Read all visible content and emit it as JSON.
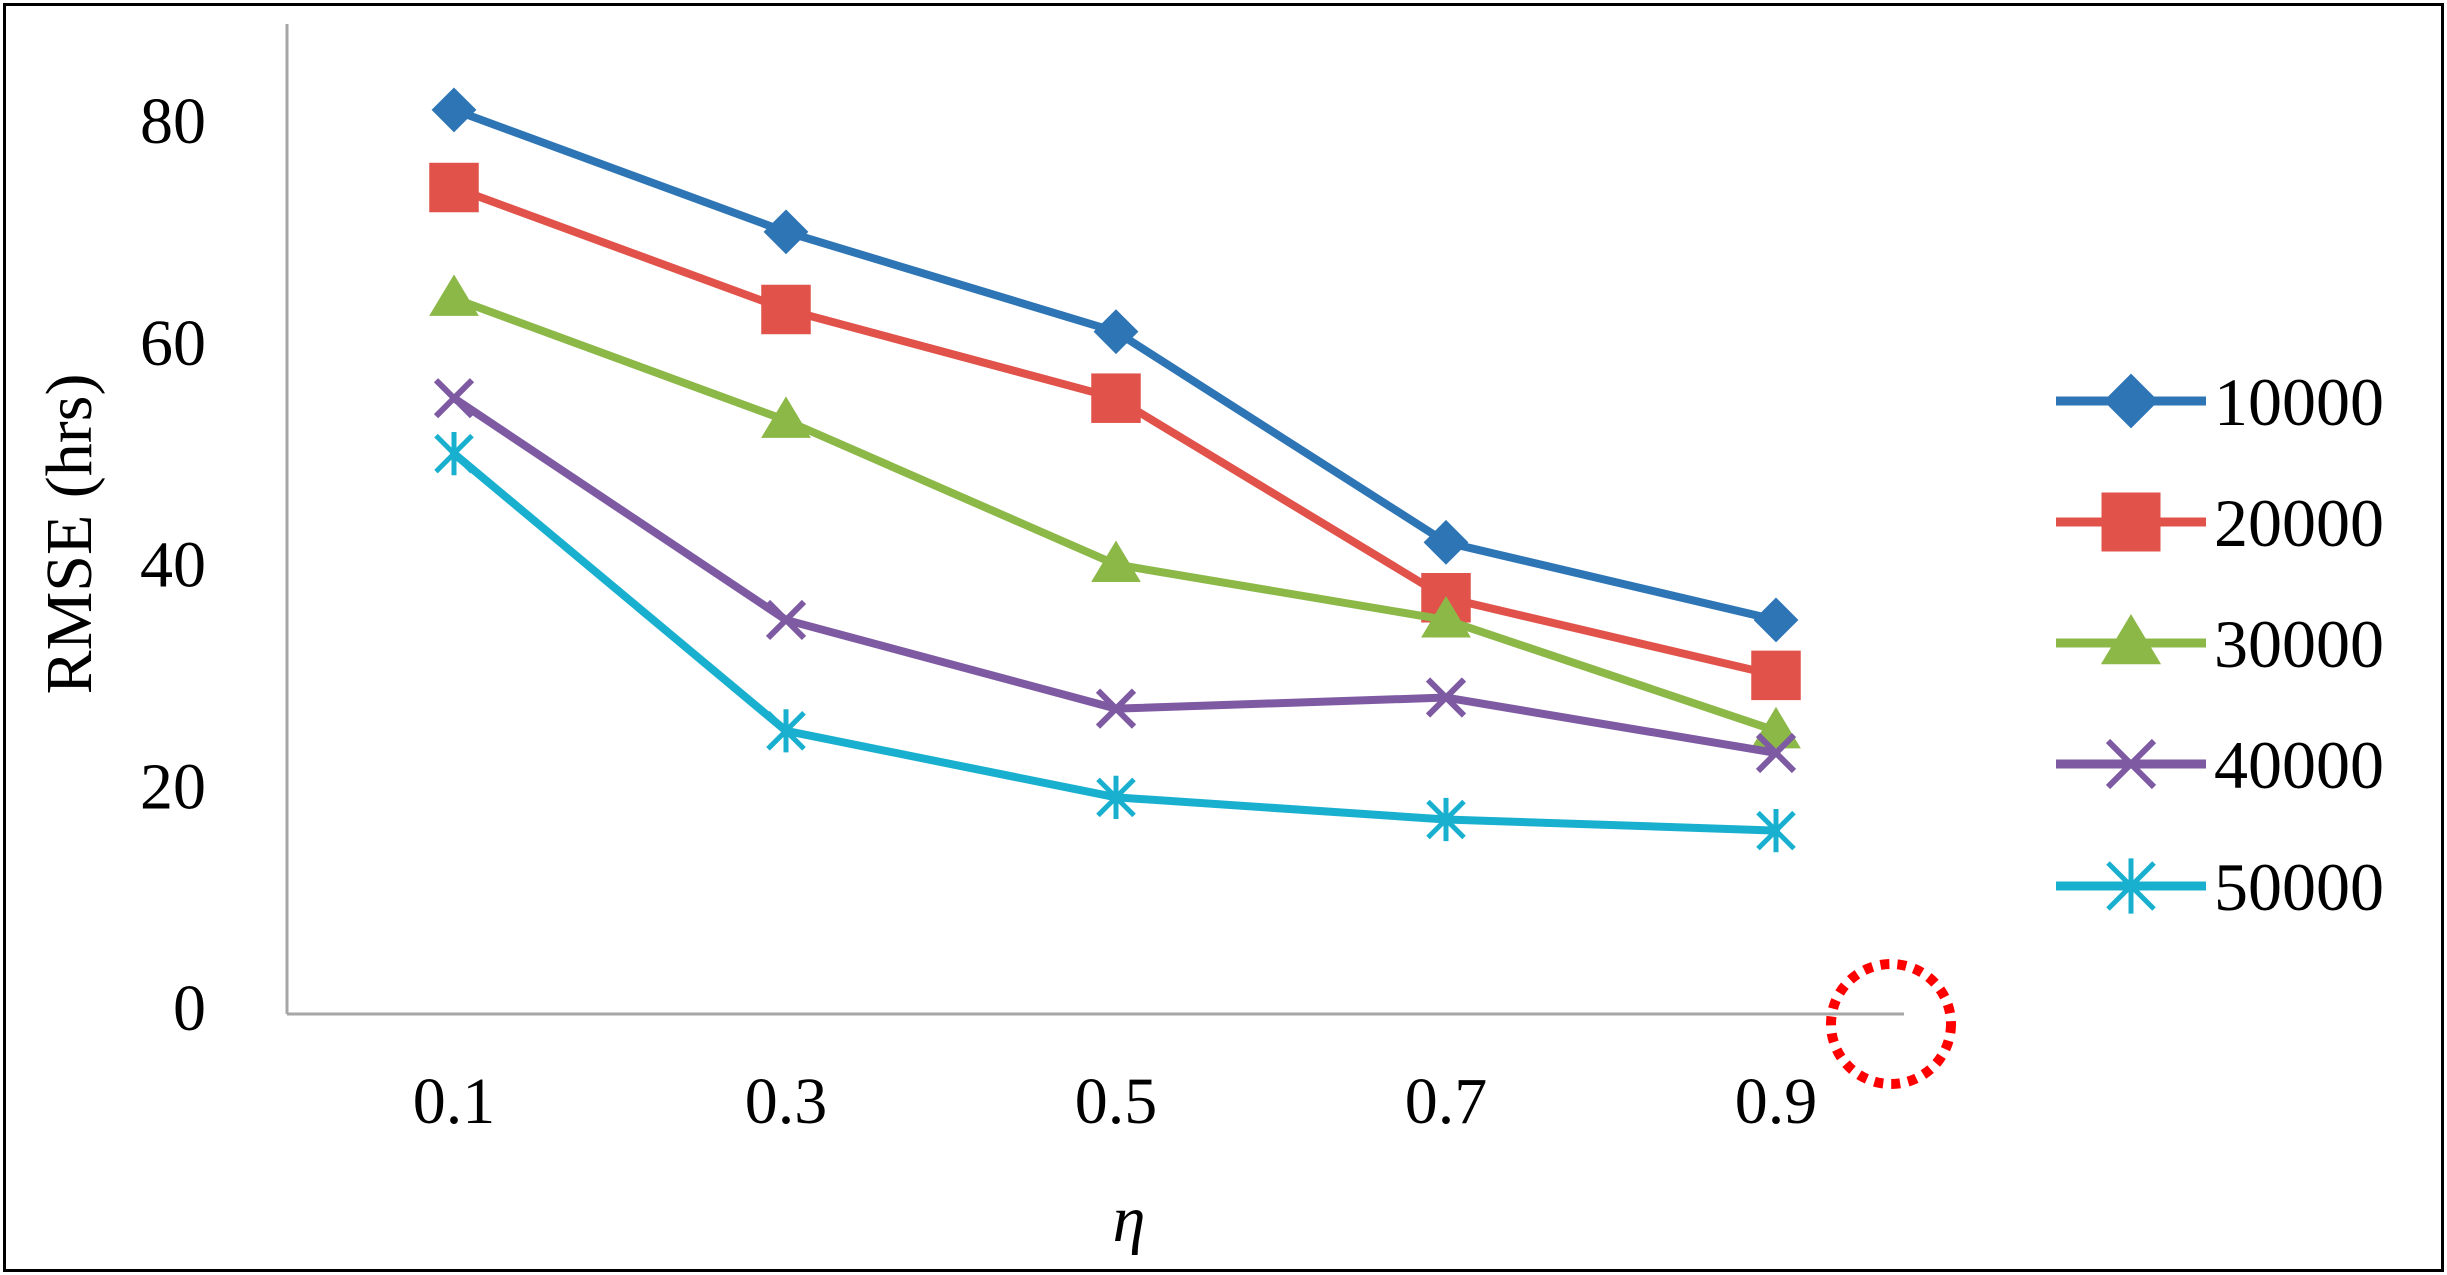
{
  "chart_data": {
    "type": "line",
    "title": "",
    "xlabel": "η",
    "ylabel": "RMSE (hrs)",
    "categories": [
      "0.1",
      "0.3",
      "0.5",
      "0.7",
      "0.9"
    ],
    "y_ticks": [
      "0",
      "20",
      "40",
      "60",
      "80"
    ],
    "ylim": [
      0,
      90
    ],
    "grid": false,
    "legend_position": "right",
    "series": [
      {
        "name": "10000",
        "marker": "diamond",
        "color": "#2E75B6",
        "values": [
          81,
          70,
          61,
          42,
          35
        ]
      },
      {
        "name": "20000",
        "marker": "square",
        "color": "#E0524A",
        "values": [
          74,
          63,
          55,
          37,
          30
        ]
      },
      {
        "name": "30000",
        "marker": "triangle",
        "color": "#8CB848",
        "values": [
          64,
          53,
          40,
          35,
          25
        ]
      },
      {
        "name": "40000",
        "marker": "x",
        "color": "#7E5AA2",
        "values": [
          55,
          35,
          27,
          28,
          23
        ]
      },
      {
        "name": "50000",
        "marker": "asterisk",
        "color": "#18B0CE",
        "values": [
          50,
          25,
          19,
          17,
          16
        ]
      }
    ],
    "annotation": {
      "shape": "dotted-circle",
      "color": "#FF0000"
    }
  }
}
